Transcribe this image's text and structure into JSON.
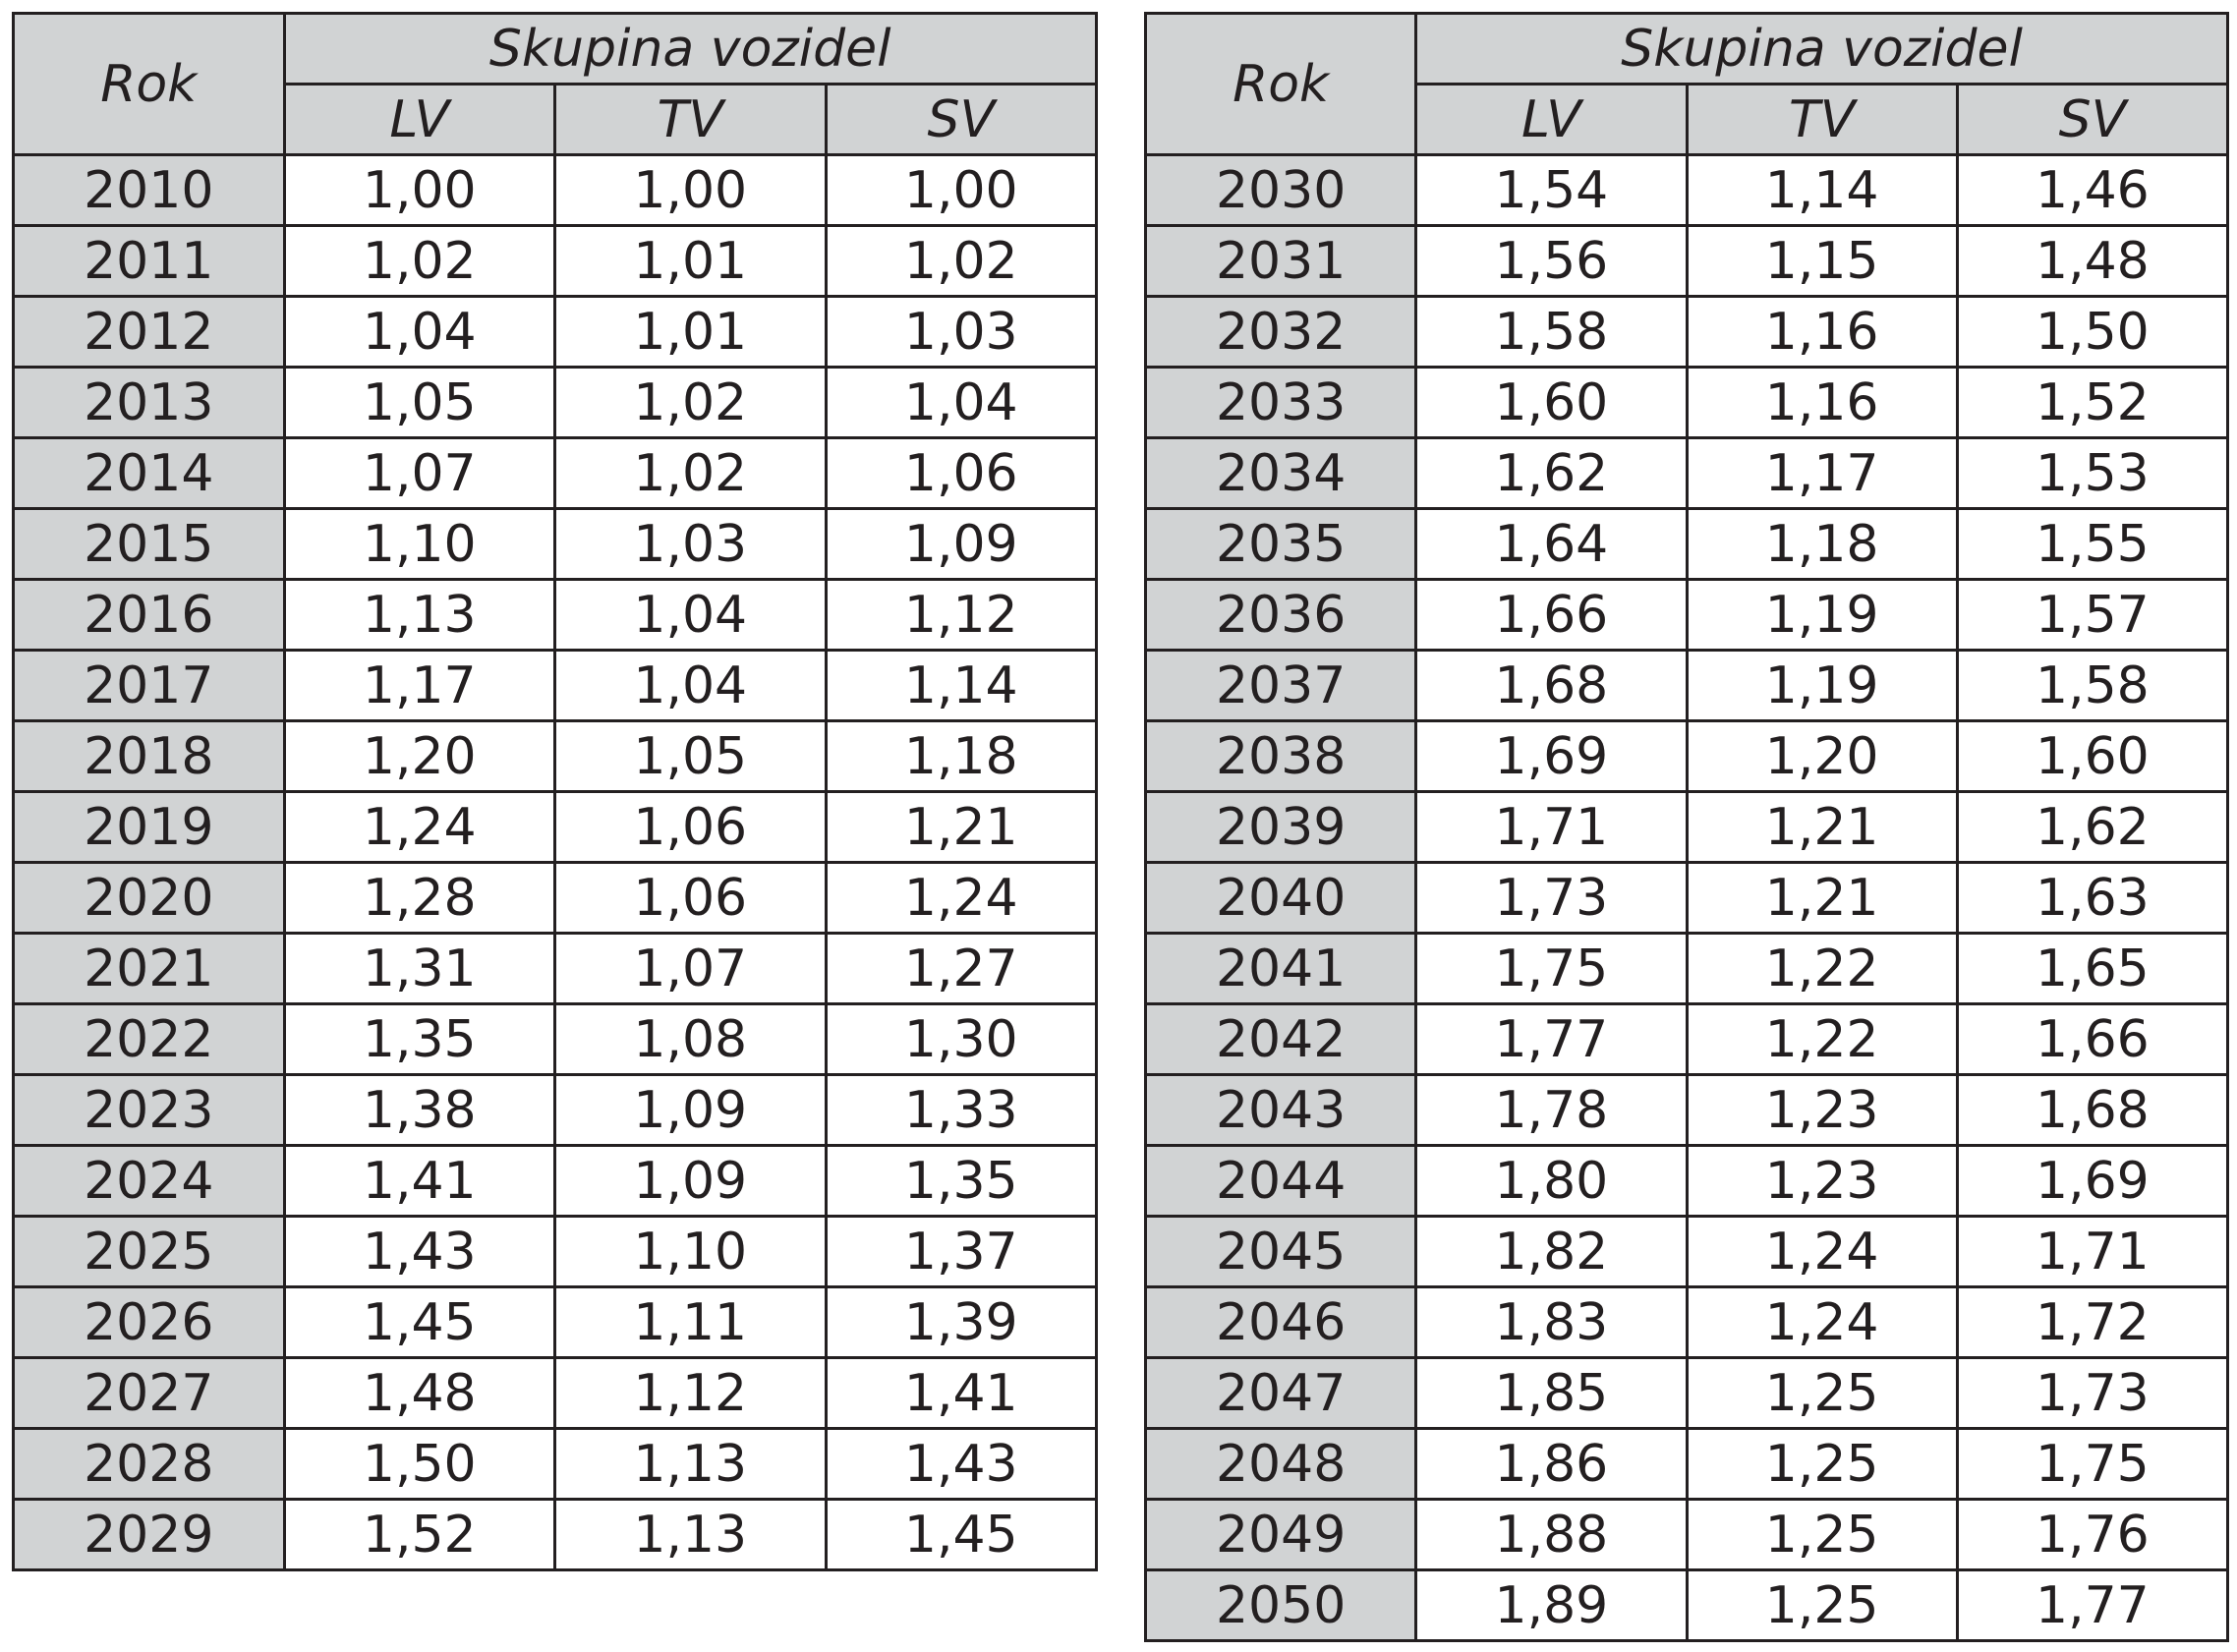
{
  "tables": [
    {
      "header": {
        "year_label": "Rok",
        "group_label": "Skupina vozidel",
        "columns": [
          "LV",
          "TV",
          "SV"
        ]
      },
      "rows": [
        {
          "year": "2010",
          "values": [
            "1,00",
            "1,00",
            "1,00"
          ]
        },
        {
          "year": "2011",
          "values": [
            "1,02",
            "1,01",
            "1,02"
          ]
        },
        {
          "year": "2012",
          "values": [
            "1,04",
            "1,01",
            "1,03"
          ]
        },
        {
          "year": "2013",
          "values": [
            "1,05",
            "1,02",
            "1,04"
          ]
        },
        {
          "year": "2014",
          "values": [
            "1,07",
            "1,02",
            "1,06"
          ]
        },
        {
          "year": "2015",
          "values": [
            "1,10",
            "1,03",
            "1,09"
          ]
        },
        {
          "year": "2016",
          "values": [
            "1,13",
            "1,04",
            "1,12"
          ]
        },
        {
          "year": "2017",
          "values": [
            "1,17",
            "1,04",
            "1,14"
          ]
        },
        {
          "year": "2018",
          "values": [
            "1,20",
            "1,05",
            "1,18"
          ]
        },
        {
          "year": "2019",
          "values": [
            "1,24",
            "1,06",
            "1,21"
          ]
        },
        {
          "year": "2020",
          "values": [
            "1,28",
            "1,06",
            "1,24"
          ]
        },
        {
          "year": "2021",
          "values": [
            "1,31",
            "1,07",
            "1,27"
          ]
        },
        {
          "year": "2022",
          "values": [
            "1,35",
            "1,08",
            "1,30"
          ]
        },
        {
          "year": "2023",
          "values": [
            "1,38",
            "1,09",
            "1,33"
          ]
        },
        {
          "year": "2024",
          "values": [
            "1,41",
            "1,09",
            "1,35"
          ]
        },
        {
          "year": "2025",
          "values": [
            "1,43",
            "1,10",
            "1,37"
          ]
        },
        {
          "year": "2026",
          "values": [
            "1,45",
            "1,11",
            "1,39"
          ]
        },
        {
          "year": "2027",
          "values": [
            "1,48",
            "1,12",
            "1,41"
          ]
        },
        {
          "year": "2028",
          "values": [
            "1,50",
            "1,13",
            "1,43"
          ]
        },
        {
          "year": "2029",
          "values": [
            "1,52",
            "1,13",
            "1,45"
          ]
        }
      ]
    },
    {
      "header": {
        "year_label": "Rok",
        "group_label": "Skupina vozidel",
        "columns": [
          "LV",
          "TV",
          "SV"
        ]
      },
      "rows": [
        {
          "year": "2030",
          "values": [
            "1,54",
            "1,14",
            "1,46"
          ]
        },
        {
          "year": "2031",
          "values": [
            "1,56",
            "1,15",
            "1,48"
          ]
        },
        {
          "year": "2032",
          "values": [
            "1,58",
            "1,16",
            "1,50"
          ]
        },
        {
          "year": "2033",
          "values": [
            "1,60",
            "1,16",
            "1,52"
          ]
        },
        {
          "year": "2034",
          "values": [
            "1,62",
            "1,17",
            "1,53"
          ]
        },
        {
          "year": "2035",
          "values": [
            "1,64",
            "1,18",
            "1,55"
          ]
        },
        {
          "year": "2036",
          "values": [
            "1,66",
            "1,19",
            "1,57"
          ]
        },
        {
          "year": "2037",
          "values": [
            "1,68",
            "1,19",
            "1,58"
          ]
        },
        {
          "year": "2038",
          "values": [
            "1,69",
            "1,20",
            "1,60"
          ]
        },
        {
          "year": "2039",
          "values": [
            "1,71",
            "1,21",
            "1,62"
          ]
        },
        {
          "year": "2040",
          "values": [
            "1,73",
            "1,21",
            "1,63"
          ]
        },
        {
          "year": "2041",
          "values": [
            "1,75",
            "1,22",
            "1,65"
          ]
        },
        {
          "year": "2042",
          "values": [
            "1,77",
            "1,22",
            "1,66"
          ]
        },
        {
          "year": "2043",
          "values": [
            "1,78",
            "1,23",
            "1,68"
          ]
        },
        {
          "year": "2044",
          "values": [
            "1,80",
            "1,23",
            "1,69"
          ]
        },
        {
          "year": "2045",
          "values": [
            "1,82",
            "1,24",
            "1,71"
          ]
        },
        {
          "year": "2046",
          "values": [
            "1,83",
            "1,24",
            "1,72"
          ]
        },
        {
          "year": "2047",
          "values": [
            "1,85",
            "1,25",
            "1,73"
          ]
        },
        {
          "year": "2048",
          "values": [
            "1,86",
            "1,25",
            "1,75"
          ]
        },
        {
          "year": "2049",
          "values": [
            "1,88",
            "1,25",
            "1,76"
          ]
        },
        {
          "year": "2050",
          "values": [
            "1,89",
            "1,25",
            "1,77"
          ]
        }
      ]
    }
  ]
}
